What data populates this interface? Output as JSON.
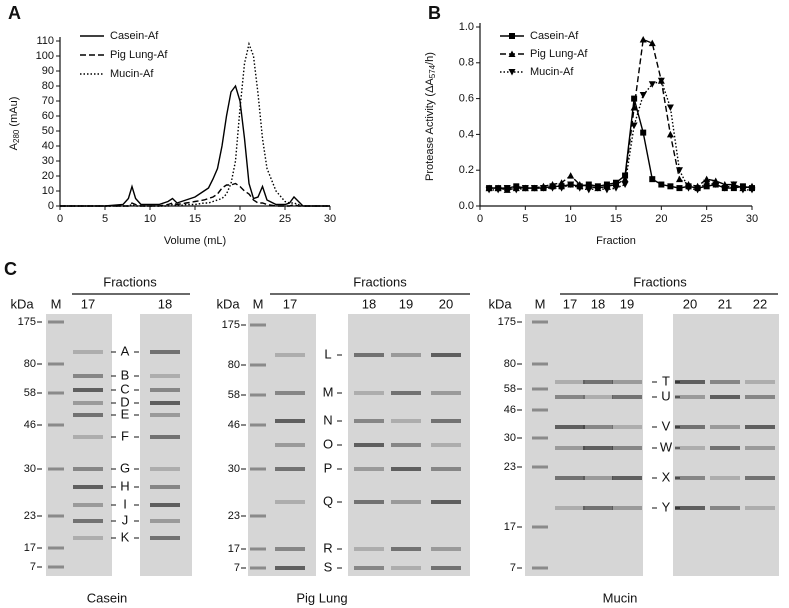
{
  "chart_data": [
    {
      "type": "line",
      "panel": "A",
      "ylabel": [
        "A",
        "280",
        " (mAu)"
      ],
      "xlabel": "Volume (mL)",
      "xlim": [
        0,
        30
      ],
      "xticks": [
        0,
        5,
        10,
        15,
        20,
        25,
        30
      ],
      "ylim": [
        0,
        110
      ],
      "yticks": [
        0,
        10,
        20,
        30,
        40,
        50,
        60,
        70,
        80,
        90,
        100,
        110
      ],
      "x": [
        0,
        5,
        7,
        7.6,
        8,
        8.4,
        9,
        11,
        12,
        12.5,
        13,
        14,
        15,
        16,
        16.5,
        17,
        17.5,
        18,
        18.5,
        19,
        19.5,
        20,
        20.5,
        21,
        21.5,
        22,
        22.5,
        23,
        24,
        25,
        25.5,
        26,
        26.5,
        27,
        30
      ],
      "series": [
        {
          "name": "Casein-Af",
          "color": "#000000",
          "dash": "solid",
          "values": [
            0,
            0,
            1,
            5,
            13,
            5,
            1,
            1,
            3,
            5,
            2,
            4,
            6,
            10,
            12,
            18,
            25,
            40,
            60,
            76,
            80,
            70,
            45,
            15,
            5,
            6,
            13,
            4,
            1,
            1,
            2,
            6,
            3,
            0,
            0
          ]
        },
        {
          "name": "Pig Lung-Af",
          "color": "#000000",
          "dash": "dashed",
          "values": [
            0,
            0,
            0,
            0,
            2,
            1,
            0,
            0,
            1,
            2,
            1,
            2,
            3,
            4,
            5,
            6,
            8,
            12,
            14,
            14,
            15,
            13,
            10,
            8,
            4,
            2,
            2,
            1,
            0,
            0,
            0,
            1,
            0,
            0,
            0
          ]
        },
        {
          "name": "Mucin-Af",
          "color": "#000000",
          "dash": "dotted",
          "values": [
            0,
            0,
            0,
            0,
            1,
            0,
            0,
            0,
            0,
            1,
            0,
            1,
            1,
            2,
            2,
            3,
            4,
            5,
            8,
            15,
            30,
            65,
            95,
            108,
            100,
            75,
            45,
            25,
            10,
            3,
            2,
            2,
            1,
            0,
            0
          ]
        }
      ]
    },
    {
      "type": "line",
      "panel": "B",
      "ylabel": [
        "Protease Activity (ΔA",
        "574",
        "/h)"
      ],
      "xlabel": "Fraction",
      "xlim": [
        0,
        30
      ],
      "xticks": [
        0,
        5,
        10,
        15,
        20,
        25,
        30
      ],
      "ylim": [
        0,
        1
      ],
      "yticks": [
        {
          "value": 0,
          "label": "0.0"
        },
        0.2,
        0.4,
        0.6,
        0.8,
        {
          "value": 1,
          "label": "1.0"
        }
      ],
      "x": [
        1,
        2,
        3,
        4,
        5,
        6,
        7,
        8,
        9,
        10,
        11,
        12,
        13,
        14,
        15,
        16,
        17,
        18,
        19,
        20,
        21,
        22,
        23,
        24,
        25,
        26,
        27,
        28,
        29,
        30
      ],
      "series": [
        {
          "name": "Casein-Af",
          "color": "#000000",
          "dash": "solid",
          "marker": "square",
          "values": [
            0.1,
            0.1,
            0.1,
            0.11,
            0.1,
            0.1,
            0.1,
            0.11,
            0.11,
            0.12,
            0.11,
            0.12,
            0.11,
            0.12,
            0.13,
            0.17,
            0.6,
            0.41,
            0.15,
            0.12,
            0.11,
            0.1,
            0.11,
            0.1,
            0.11,
            0.12,
            0.1,
            0.1,
            0.11,
            0.1
          ]
        },
        {
          "name": "Pig Lung-Af",
          "color": "#000000",
          "dash": "dashed",
          "marker": "triangle-up",
          "values": [
            0.1,
            0.1,
            0.09,
            0.1,
            0.1,
            0.1,
            0.11,
            0.12,
            0.13,
            0.17,
            0.12,
            0.11,
            0.1,
            0.11,
            0.12,
            0.15,
            0.55,
            0.93,
            0.91,
            0.7,
            0.4,
            0.15,
            0.12,
            0.11,
            0.15,
            0.14,
            0.12,
            0.12,
            0.1,
            0.11
          ]
        },
        {
          "name": "Mucin-Af",
          "color": "#000000",
          "dash": "dotted",
          "marker": "triangle-down",
          "values": [
            0.09,
            0.09,
            0.1,
            0.09,
            0.1,
            0.1,
            0.1,
            0.1,
            0.1,
            0.12,
            0.1,
            0.09,
            0.1,
            0.09,
            0.1,
            0.12,
            0.45,
            0.62,
            0.68,
            0.7,
            0.55,
            0.2,
            0.1,
            0.09,
            0.13,
            0.12,
            0.1,
            0.12,
            0.09,
            0.09
          ]
        }
      ]
    }
  ],
  "gels": {
    "panel": "C",
    "panels": [
      {
        "title": "Casein",
        "header": "Fractions",
        "kda": "kDa",
        "marker_lane": "M",
        "lanes": [
          "17",
          "18"
        ],
        "ladder": [
          "175",
          "80",
          "58",
          "46",
          "30",
          "23",
          "17",
          "7"
        ],
        "bands": [
          "A",
          "B",
          "C",
          "D",
          "E",
          "F",
          "G",
          "H",
          "I",
          "J",
          "K"
        ]
      },
      {
        "title": "Pig Lung",
        "header": "Fractions",
        "kda": "kDa",
        "marker_lane": "M",
        "lanes": [
          "17",
          "18",
          "19",
          "20"
        ],
        "ladder": [
          "175",
          "80",
          "58",
          "46",
          "30",
          "23",
          "17",
          "7"
        ],
        "bands": [
          "L",
          "M",
          "N",
          "O",
          "P",
          "Q",
          "R",
          "S"
        ]
      },
      {
        "title": "Mucin",
        "header": "Fractions",
        "kda": "kDa",
        "marker_lane": "M",
        "lanes": [
          "17",
          "18",
          "19",
          "20",
          "21",
          "22"
        ],
        "ladder": [
          "175",
          "80",
          "58",
          "46",
          "30",
          "23",
          "17",
          "7"
        ],
        "bands": [
          "T",
          "U",
          "V",
          "W",
          "X",
          "Y"
        ]
      }
    ]
  }
}
